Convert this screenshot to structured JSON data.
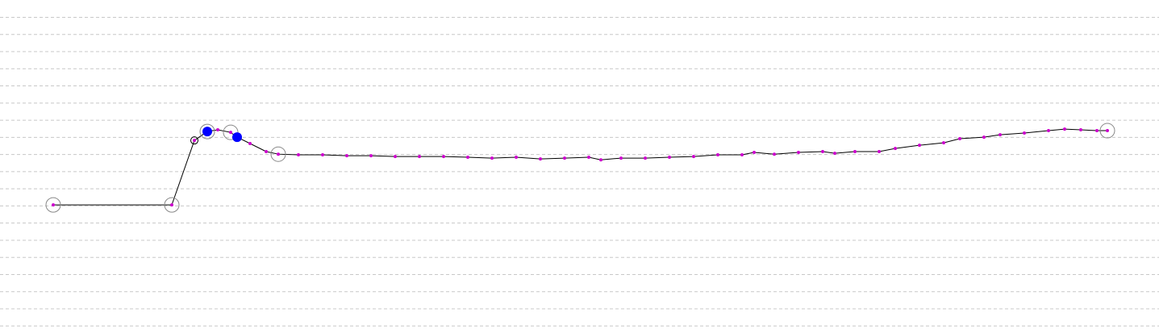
{
  "chart_data": {
    "type": "line",
    "x": [
      66,
      213,
      241,
      257,
      270,
      286,
      294,
      310,
      330,
      345,
      370,
      400,
      430,
      460,
      490,
      520,
      550,
      580,
      610,
      640,
      670,
      700,
      730,
      745,
      770,
      800,
      830,
      860,
      890,
      920,
      935,
      960,
      990,
      1020,
      1035,
      1060,
      1090,
      1110,
      1140,
      1170,
      1190,
      1220,
      1240,
      1270,
      1300,
      1320,
      1340,
      1360,
      1373
    ],
    "series": [
      {
        "color": "#cc00cc",
        "values": [
          8.06,
          8.06,
          11.82,
          12.34,
          12.44,
          12.29,
          12.01,
          11.64,
          11.17,
          11.02,
          10.98,
          10.98,
          10.93,
          10.93,
          10.88,
          10.88,
          10.88,
          10.84,
          10.79,
          10.84,
          10.74,
          10.79,
          10.84,
          10.69,
          10.79,
          10.79,
          10.84,
          10.88,
          10.98,
          10.98,
          11.12,
          11.02,
          11.12,
          11.17,
          11.07,
          11.17,
          11.17,
          11.35,
          11.54,
          11.68,
          11.92,
          12.01,
          12.15,
          12.25,
          12.39,
          12.48,
          12.44,
          12.39,
          12.39
        ]
      }
    ],
    "xlim": [
      0,
      1437
    ],
    "ylim": [
      0.59,
      20.01
    ],
    "yticks": [
      1,
      2,
      3,
      4,
      5,
      6,
      7,
      8,
      9,
      10,
      11,
      12,
      13,
      14,
      15,
      16,
      17,
      18,
      19
    ],
    "grid": true
  }
}
